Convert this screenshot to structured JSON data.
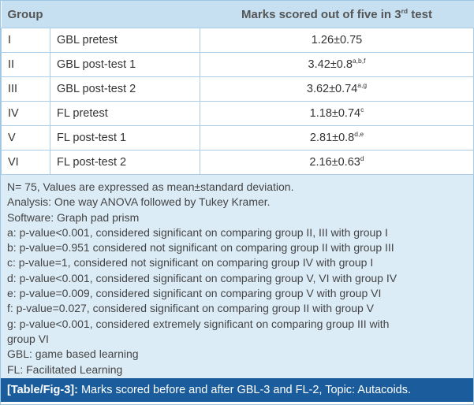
{
  "table": {
    "header": {
      "group": "Group",
      "marks": {
        "text": "Marks scored out of five in 3",
        "sup": "rd",
        "after": " test"
      }
    },
    "rows": [
      [
        "I",
        "GBL pretest",
        {
          "value": "1.26±0.75",
          "sup": null
        }
      ],
      [
        "II",
        "GBL post-test 1",
        {
          "value": "3.42±0.8",
          "sup": "a,b,f"
        }
      ],
      [
        "III",
        "GBL post-test 2",
        {
          "value": "3.62±0.74",
          "sup": "a,g"
        }
      ],
      [
        "IV",
        "FL pretest",
        {
          "value": "1.18±0.74",
          "sup": "c"
        }
      ],
      [
        "V",
        "FL post-test 1",
        {
          "value": "2.81±0.8",
          "sup": "d,e"
        }
      ],
      [
        "VI",
        "FL post-test 2",
        {
          "value": "2.16±0.63",
          "sup": "d"
        }
      ]
    ]
  },
  "notes": [
    "N= 75, Values are expressed as mean±standard deviation.",
    "Analysis: One way ANOVA followed by Tukey Kramer.",
    "Software: Graph pad prism",
    "a: p-value<0.001, considered significant on comparing group II, III with group I",
    "b: p-value=0.951 considered not significant on comparing group II with group III",
    "c: p-value=1, considered not significant on comparing group IV with group I",
    "d: p-value<0.001, considered significant on comparing group V, VI with group IV",
    "e: p-value=0.009, considered significant on comparing group V with group VI",
    "f: p-value=0.027, considered significant on comparing group II with group V",
    "g: p-value<0.001, considered extremely significant on comparing group III with",
    "group VI",
    "GBL: game based learning",
    "FL: Facilitated Learning"
  ],
  "caption": {
    "label": "[Table/Fig-3]:",
    "text": " Marks scored before and after GBL-3 and FL-2, Topic: Autacoids."
  }
}
